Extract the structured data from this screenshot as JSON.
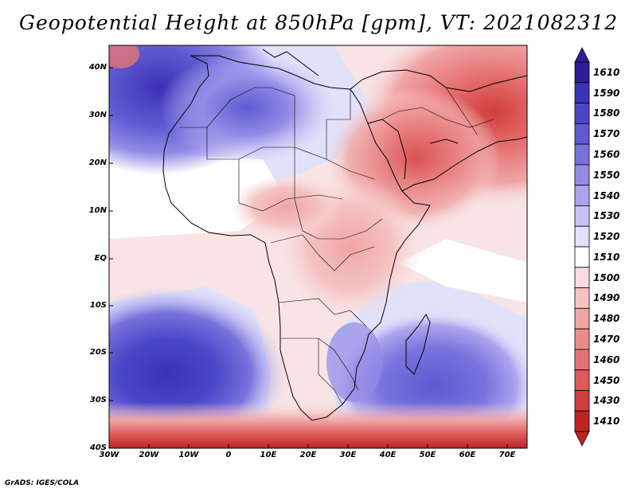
{
  "title": "Geopotential Height at 850hPa [gpm], VT: 2021082312",
  "footer": "GrADS: IGES/COLA",
  "lat_labels": [
    "40N",
    "30N",
    "20N",
    "10N",
    "EQ",
    "10S",
    "20S",
    "30S",
    "40S"
  ],
  "lon_labels": [
    "30W",
    "20W",
    "10W",
    "0",
    "10E",
    "20E",
    "30E",
    "40E",
    "50E",
    "60E",
    "70E"
  ],
  "colorbar": {
    "labels": [
      "1610",
      "1590",
      "1580",
      "1570",
      "1560",
      "1550",
      "1540",
      "1530",
      "1520",
      "1510",
      "1500",
      "1490",
      "1480",
      "1470",
      "1460",
      "1450",
      "1430",
      "1410"
    ],
    "colors": [
      "#2d1e9a",
      "#3c32b4",
      "#4b46c8",
      "#5f5ad2",
      "#7873dc",
      "#918ce6",
      "#aaa5ee",
      "#c3c3f5",
      "#e1e1fa",
      "#ffffff",
      "#fadcdc",
      "#f5c3c3",
      "#f0a5a5",
      "#eb8c8c",
      "#e67373",
      "#dc5a5a",
      "#d23c3c",
      "#be2323"
    ]
  }
}
